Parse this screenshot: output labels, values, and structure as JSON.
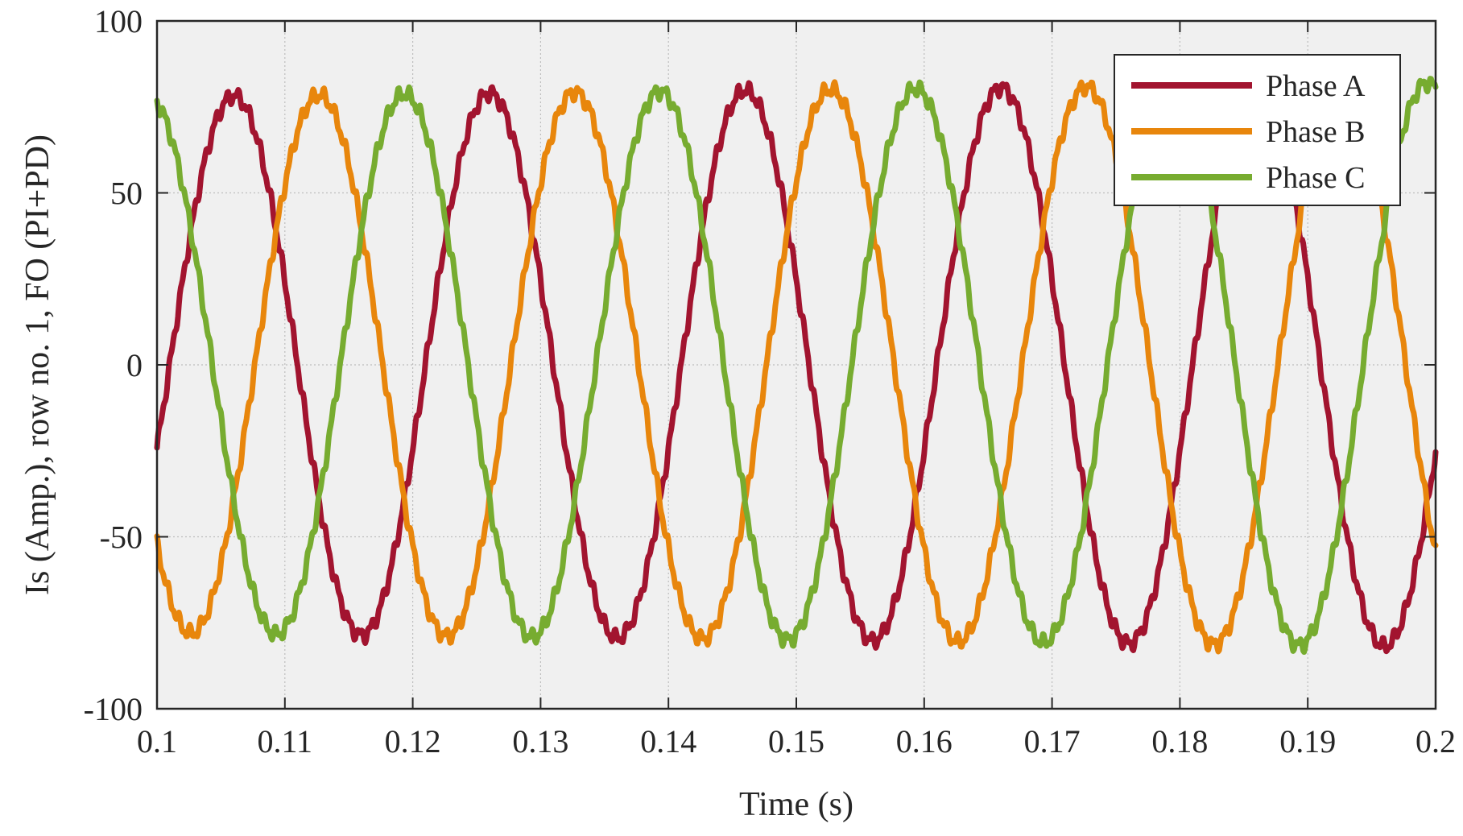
{
  "chart_data": {
    "type": "line",
    "title": "",
    "xlabel": "Time (s)",
    "ylabel": "Is (Amp.), row no. 1, FO (PI+PD)",
    "xlim": [
      0.1,
      0.2
    ],
    "ylim": [
      -100,
      100
    ],
    "grid": true,
    "legend_position": "top-right",
    "x_ticks": [
      0.1,
      0.11,
      0.12,
      0.13,
      0.14,
      0.15,
      0.16,
      0.17,
      0.18,
      0.19,
      0.2
    ],
    "x_tick_labels": [
      "0.1",
      "0.11",
      "0.12",
      "0.13",
      "0.14",
      "0.15",
      "0.16",
      "0.17",
      "0.18",
      "0.19",
      "0.2"
    ],
    "y_ticks": [
      -100,
      -50,
      0,
      50,
      100
    ],
    "y_tick_labels": [
      "-100",
      "-50",
      "0",
      "50",
      "100"
    ],
    "signal": {
      "frequency_hz": 50,
      "amplitude_start": 78,
      "amplitude_end": 82,
      "phase_a_zero_crossing_s": 0.101
    },
    "series": [
      {
        "name": "Phase A",
        "color": "#A2142F",
        "phase_shift_deg": 0
      },
      {
        "name": "Phase B",
        "color": "#E8860C",
        "phase_shift_deg": -120
      },
      {
        "name": "Phase C",
        "color": "#77AC30",
        "phase_shift_deg": 120
      }
    ]
  }
}
